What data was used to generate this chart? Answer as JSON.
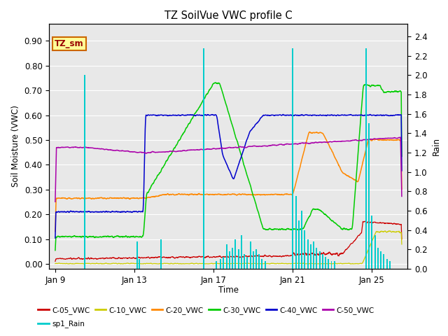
{
  "title": "TZ SoilVue VWC profile C",
  "xlabel": "Time",
  "ylabel_left": "Soil Moisture (VWC)",
  "ylabel_right": "Rain",
  "xlim_days": [
    -0.3,
    17.8
  ],
  "ylim_left": [
    -0.02,
    0.97
  ],
  "ylim_right": [
    0,
    2.533
  ],
  "x_tick_labels": [
    "Jan 9",
    "Jan 13",
    "Jan 17",
    "Jan 21",
    "Jan 25"
  ],
  "x_tick_positions": [
    0,
    4,
    8,
    12,
    16
  ],
  "y_tick_left": [
    0.0,
    0.1,
    0.2,
    0.3,
    0.4,
    0.5,
    0.6,
    0.7,
    0.8,
    0.9
  ],
  "y_tick_right": [
    0.0,
    0.2,
    0.4,
    0.6,
    0.8,
    1.0,
    1.2,
    1.4,
    1.6,
    1.8,
    2.0,
    2.2,
    2.4
  ],
  "legend_box_label": "TZ_sm",
  "legend_box_color": "#ffff99",
  "legend_box_border": "#cc6600",
  "plot_bg": "#e8e8e8",
  "series_colors": {
    "C-05_VWC": "#cc0000",
    "C-10_VWC": "#cccc00",
    "C-20_VWC": "#ff8800",
    "C-30_VWC": "#00cc00",
    "C-40_VWC": "#0000cc",
    "C-50_VWC": "#aa00aa",
    "sp1_Rain": "#00cccc"
  },
  "rain_events": [
    {
      "day": 1.5,
      "height": 2.0
    },
    {
      "day": 4.15,
      "height": 0.28
    },
    {
      "day": 4.25,
      "height": 0.1
    },
    {
      "day": 5.35,
      "height": 0.3
    },
    {
      "day": 7.5,
      "height": 2.28
    },
    {
      "day": 8.15,
      "height": 0.08
    },
    {
      "day": 8.35,
      "height": 0.1
    },
    {
      "day": 8.5,
      "height": 0.12
    },
    {
      "day": 8.65,
      "height": 0.25
    },
    {
      "day": 8.8,
      "height": 0.18
    },
    {
      "day": 8.95,
      "height": 0.22
    },
    {
      "day": 9.1,
      "height": 0.3
    },
    {
      "day": 9.25,
      "height": 0.2
    },
    {
      "day": 9.4,
      "height": 0.35
    },
    {
      "day": 9.55,
      "height": 0.15
    },
    {
      "day": 9.7,
      "height": 0.12
    },
    {
      "day": 9.85,
      "height": 0.28
    },
    {
      "day": 10.0,
      "height": 0.18
    },
    {
      "day": 10.15,
      "height": 0.2
    },
    {
      "day": 10.3,
      "height": 0.15
    },
    {
      "day": 10.45,
      "height": 0.1
    },
    {
      "day": 10.6,
      "height": 0.08
    },
    {
      "day": 12.0,
      "height": 2.28
    },
    {
      "day": 12.15,
      "height": 0.75
    },
    {
      "day": 12.3,
      "height": 0.5
    },
    {
      "day": 12.45,
      "height": 0.6
    },
    {
      "day": 12.6,
      "height": 0.4
    },
    {
      "day": 12.75,
      "height": 0.3
    },
    {
      "day": 12.9,
      "height": 0.25
    },
    {
      "day": 13.05,
      "height": 0.28
    },
    {
      "day": 13.2,
      "height": 0.22
    },
    {
      "day": 13.35,
      "height": 0.18
    },
    {
      "day": 13.5,
      "height": 0.15
    },
    {
      "day": 13.65,
      "height": 0.12
    },
    {
      "day": 13.8,
      "height": 0.1
    },
    {
      "day": 13.95,
      "height": 0.08
    },
    {
      "day": 14.1,
      "height": 0.08
    },
    {
      "day": 15.7,
      "height": 2.28
    },
    {
      "day": 15.85,
      "height": 1.5
    },
    {
      "day": 16.0,
      "height": 0.55
    },
    {
      "day": 16.15,
      "height": 0.35
    },
    {
      "day": 16.3,
      "height": 0.22
    },
    {
      "day": 16.45,
      "height": 0.18
    },
    {
      "day": 16.6,
      "height": 0.15
    },
    {
      "day": 16.75,
      "height": 0.1
    },
    {
      "day": 16.9,
      "height": 0.08
    }
  ]
}
